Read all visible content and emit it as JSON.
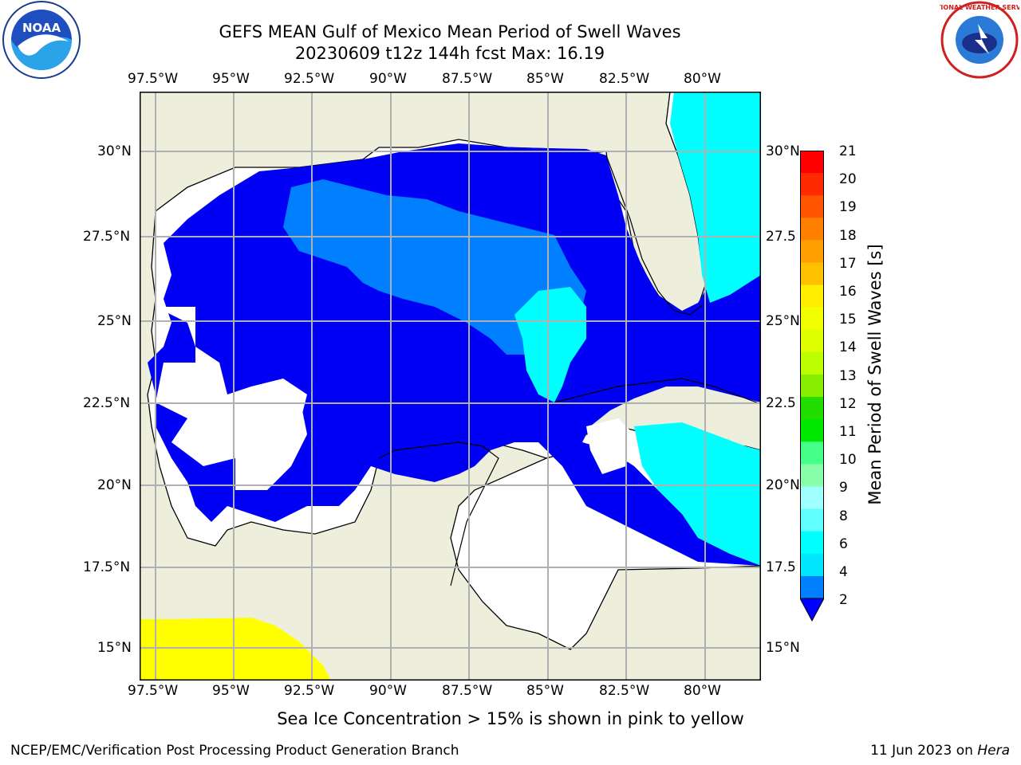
{
  "title_line1": "GEFS MEAN Gulf of Mexico Mean Period of Swell Waves",
  "title_line2": "20230609 t12z 144h fcst   Max: 16.19",
  "logos": {
    "noaa": "NOAA",
    "nws": "NATIONAL WEATHER SERVICE"
  },
  "map": {
    "lon_labels": [
      "97.5°W",
      "95°W",
      "92.5°W",
      "90°W",
      "87.5°W",
      "85°W",
      "82.5°W",
      "80°W"
    ],
    "lat_labels": [
      "30°N",
      "27.5°N",
      "25°N",
      "22.5°N",
      "20°N",
      "17.5°N",
      "15°N"
    ],
    "lat_labels_right": [
      "30°N",
      "27.5",
      "25°N",
      "22.5",
      "20°N",
      "17.5",
      "15°N"
    ],
    "colors": {
      "land": "#eeeedd",
      "grid": "#b0b0b0",
      "band_2_4": "#0000f5",
      "band_4_6": "#0080ff",
      "band_6_8": "#00ffff",
      "ice": "#ffff00"
    }
  },
  "colorbar": {
    "ticks": [
      "21",
      "20",
      "19",
      "18",
      "17",
      "16",
      "15",
      "14",
      "13",
      "12",
      "11",
      "10",
      "9",
      "8",
      "6",
      "4",
      "2"
    ],
    "colors": [
      "#ff0000",
      "#ff2a00",
      "#ff5500",
      "#ff8000",
      "#ffa000",
      "#ffc000",
      "#ffee00",
      "#f2ff00",
      "#ddff00",
      "#bbff00",
      "#88ee00",
      "#22dd00",
      "#00e800",
      "#44ff88",
      "#88ffaa",
      "#a0ffff",
      "#60ffff",
      "#00ffff",
      "#00e6ff",
      "#0080ff"
    ],
    "extend_color": "#0000ff",
    "label": "Mean Period of Swell Waves [s]"
  },
  "note": "Sea Ice Concentration > 15% is shown in pink to yellow",
  "footer_left": "NCEP/EMC/Verification Post Processing Product Generation Branch",
  "footer_date": "11 Jun 2023 on ",
  "footer_host": "Hera"
}
